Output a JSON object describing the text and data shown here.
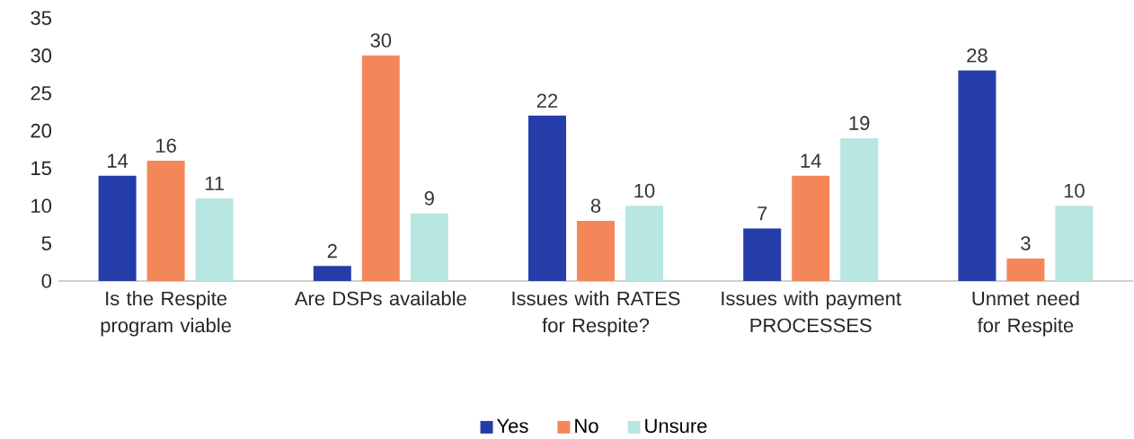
{
  "chart_data": {
    "type": "bar",
    "categories": [
      "Is the Respite program viable",
      "Are DSPs available",
      "Issues with RATES for Respite?",
      "Issues with payment PROCESSES",
      "Unmet need for Respite"
    ],
    "series": [
      {
        "name": "Yes",
        "color": "#253da8",
        "values": [
          14,
          2,
          22,
          7,
          28
        ]
      },
      {
        "name": "No",
        "color": "#f4875a",
        "values": [
          16,
          30,
          8,
          14,
          3
        ]
      },
      {
        "name": "Unsure",
        "color": "#b8e6e0",
        "values": [
          11,
          9,
          10,
          19,
          10
        ]
      }
    ],
    "ylim": [
      0,
      35
    ],
    "yticks": [
      0,
      5,
      10,
      15,
      20,
      25,
      30,
      35
    ],
    "data_labels": true,
    "legend": "bottom"
  }
}
